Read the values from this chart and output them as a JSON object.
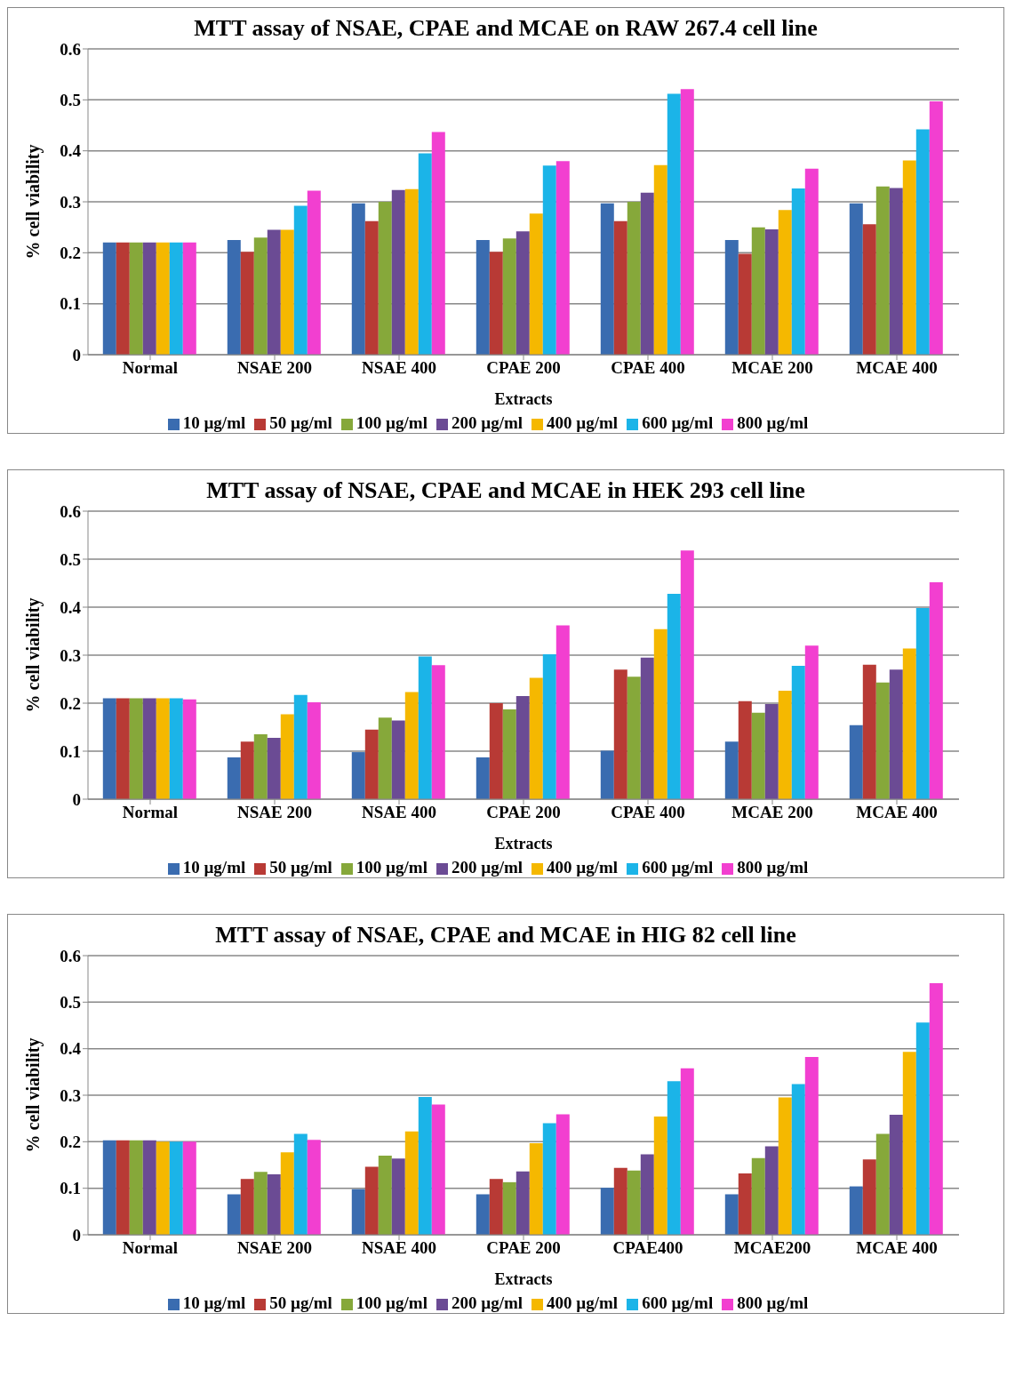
{
  "chart_data": [
    {
      "type": "bar",
      "title": "MTT assay of NSAE, CPAE and MCAE on RAW 267.4 cell line",
      "xlabel": "Extracts",
      "ylabel": "% cell viability",
      "categories": [
        "Normal",
        "NSAE 200",
        "NSAE 400",
        "CPAE 200",
        "CPAE 400",
        "MCAE 200",
        "MCAE 400"
      ],
      "series": [
        {
          "name": "10 µg/ml",
          "color": "#3a6cb0",
          "values": [
            0.22,
            0.225,
            0.297,
            0.225,
            0.297,
            0.225,
            0.297
          ]
        },
        {
          "name": "50 µg/ml",
          "color": "#b83a35",
          "values": [
            0.22,
            0.202,
            0.262,
            0.202,
            0.262,
            0.198,
            0.256
          ]
        },
        {
          "name": "100 µg/ml",
          "color": "#86a83a",
          "values": [
            0.22,
            0.23,
            0.3,
            0.228,
            0.3,
            0.25,
            0.33
          ]
        },
        {
          "name": "200 µg/ml",
          "color": "#6b4b94",
          "values": [
            0.22,
            0.245,
            0.323,
            0.242,
            0.318,
            0.246,
            0.327
          ]
        },
        {
          "name": "400 µg/ml",
          "color": "#f5b800",
          "values": [
            0.22,
            0.245,
            0.325,
            0.277,
            0.372,
            0.284,
            0.381
          ]
        },
        {
          "name": "600 µg/ml",
          "color": "#1bb4e8",
          "values": [
            0.22,
            0.292,
            0.395,
            0.371,
            0.512,
            0.326,
            0.442
          ]
        },
        {
          "name": "800 µg/ml",
          "color": "#f23fd0",
          "values": [
            0.22,
            0.322,
            0.437,
            0.38,
            0.521,
            0.365,
            0.497
          ]
        }
      ],
      "ylim": [
        0,
        0.6
      ],
      "yticks": [
        0,
        0.1,
        0.2,
        0.3,
        0.4,
        0.5,
        0.6
      ],
      "grid": "y",
      "legend": "bottom"
    },
    {
      "type": "bar",
      "title": "MTT assay of NSAE, CPAE and MCAE in HEK 293 cell line",
      "xlabel": "Extracts",
      "ylabel": "% cell viability",
      "categories": [
        "Normal",
        "NSAE 200",
        "NSAE 400",
        "CPAE 200",
        "CPAE 400",
        "MCAE 200",
        "MCAE 400"
      ],
      "series": [
        {
          "name": "10 µg/ml",
          "color": "#3a6cb0",
          "values": [
            0.21,
            0.087,
            0.098,
            0.087,
            0.101,
            0.12,
            0.154
          ]
        },
        {
          "name": "50 µg/ml",
          "color": "#b83a35",
          "values": [
            0.21,
            0.12,
            0.145,
            0.2,
            0.27,
            0.204,
            0.28
          ]
        },
        {
          "name": "100 µg/ml",
          "color": "#86a83a",
          "values": [
            0.21,
            0.135,
            0.17,
            0.187,
            0.255,
            0.18,
            0.243
          ]
        },
        {
          "name": "200 µg/ml",
          "color": "#6b4b94",
          "values": [
            0.21,
            0.128,
            0.164,
            0.215,
            0.295,
            0.198,
            0.27
          ]
        },
        {
          "name": "400 µg/ml",
          "color": "#f5b800",
          "values": [
            0.21,
            0.177,
            0.223,
            0.253,
            0.354,
            0.226,
            0.314
          ]
        },
        {
          "name": "600 µg/ml",
          "color": "#1bb4e8",
          "values": [
            0.21,
            0.217,
            0.297,
            0.302,
            0.428,
            0.278,
            0.398
          ]
        },
        {
          "name": "800 µg/ml",
          "color": "#f23fd0",
          "values": [
            0.208,
            0.202,
            0.279,
            0.362,
            0.518,
            0.32,
            0.452
          ]
        }
      ],
      "ylim": [
        0,
        0.6
      ],
      "yticks": [
        0,
        0.1,
        0.2,
        0.3,
        0.4,
        0.5,
        0.6
      ],
      "grid": "y",
      "legend": "bottom"
    },
    {
      "type": "bar",
      "title": "MTT assay of NSAE, CPAE and MCAE in HIG 82 cell line",
      "xlabel": "Extracts",
      "ylabel": "% cell viability",
      "categories": [
        "Normal",
        "NSAE 200",
        "NSAE 400",
        "CPAE 200",
        "CPAE400",
        "MCAE200",
        "MCAE 400"
      ],
      "series": [
        {
          "name": "10 µg/ml",
          "color": "#3a6cb0",
          "values": [
            0.203,
            0.087,
            0.098,
            0.087,
            0.101,
            0.087,
            0.104
          ]
        },
        {
          "name": "50 µg/ml",
          "color": "#b83a35",
          "values": [
            0.203,
            0.12,
            0.146,
            0.12,
            0.144,
            0.132,
            0.162
          ]
        },
        {
          "name": "100 µg/ml",
          "color": "#86a83a",
          "values": [
            0.203,
            0.135,
            0.17,
            0.113,
            0.138,
            0.165,
            0.217
          ]
        },
        {
          "name": "200 µg/ml",
          "color": "#6b4b94",
          "values": [
            0.203,
            0.13,
            0.164,
            0.136,
            0.173,
            0.19,
            0.258
          ]
        },
        {
          "name": "400 µg/ml",
          "color": "#f5b800",
          "values": [
            0.2,
            0.177,
            0.222,
            0.197,
            0.254,
            0.295,
            0.393
          ]
        },
        {
          "name": "600 µg/ml",
          "color": "#1bb4e8",
          "values": [
            0.2,
            0.217,
            0.296,
            0.24,
            0.33,
            0.324,
            0.456
          ]
        },
        {
          "name": "800 µg/ml",
          "color": "#f23fd0",
          "values": [
            0.2,
            0.204,
            0.28,
            0.259,
            0.358,
            0.382,
            0.541
          ]
        }
      ],
      "ylim": [
        0,
        0.6
      ],
      "yticks": [
        0,
        0.1,
        0.2,
        0.3,
        0.4,
        0.5,
        0.6
      ],
      "grid": "y",
      "legend": "bottom"
    }
  ]
}
